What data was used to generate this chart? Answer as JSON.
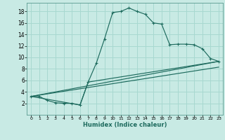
{
  "xlabel": "Humidex (Indice chaleur)",
  "bg_color": "#c8eae4",
  "grid_color": "#a8d8d0",
  "line_color": "#1e6b5e",
  "xlim": [
    -0.5,
    23.5
  ],
  "ylim": [
    0,
    19.5
  ],
  "xticks": [
    0,
    1,
    2,
    3,
    4,
    5,
    6,
    7,
    8,
    9,
    10,
    11,
    12,
    13,
    14,
    15,
    16,
    17,
    18,
    19,
    20,
    21,
    22,
    23
  ],
  "yticks": [
    2,
    4,
    6,
    8,
    10,
    12,
    14,
    16,
    18
  ],
  "line1_x": [
    0,
    1,
    2,
    3,
    4,
    5,
    6,
    7,
    8,
    9,
    10,
    11,
    12,
    13,
    14,
    15,
    16,
    17,
    18,
    19,
    20,
    21,
    22,
    23
  ],
  "line1_y": [
    3.2,
    3.2,
    2.5,
    2.1,
    2.0,
    2.0,
    1.7,
    5.7,
    9.0,
    13.2,
    17.8,
    18.0,
    18.6,
    18.0,
    17.5,
    16.0,
    15.8,
    12.2,
    12.3,
    12.3,
    12.2,
    11.5,
    9.8,
    9.3
  ],
  "line2_x": [
    0,
    23
  ],
  "line2_y": [
    3.2,
    9.3
  ],
  "line3_x": [
    0,
    6,
    7,
    23
  ],
  "line3_y": [
    3.2,
    1.7,
    5.7,
    9.3
  ],
  "line4_x": [
    0,
    23
  ],
  "line4_y": [
    3.2,
    8.3
  ]
}
